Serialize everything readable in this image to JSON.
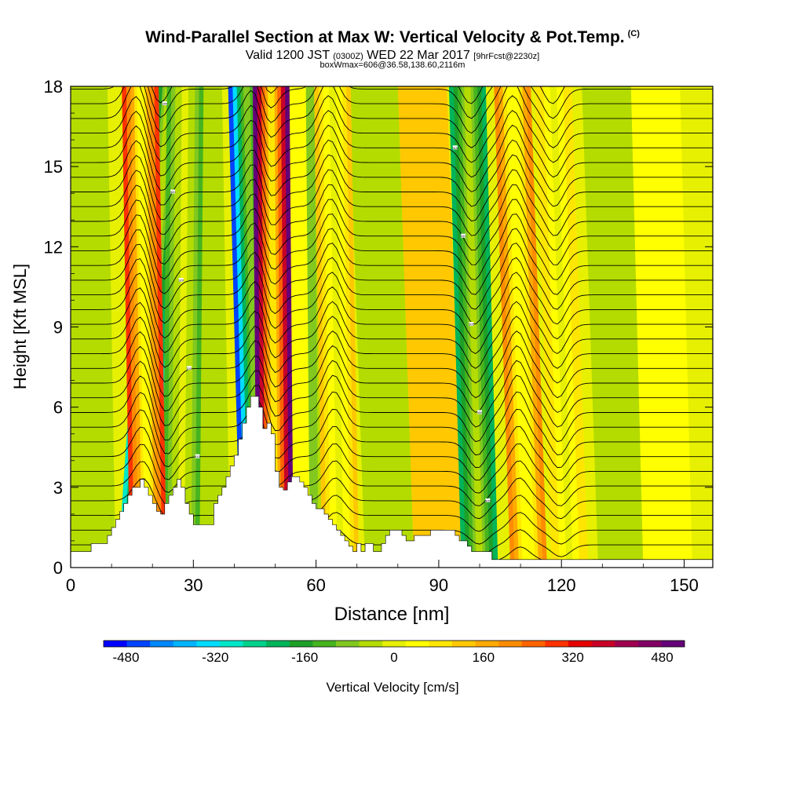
{
  "header": {
    "title": "Wind-Parallel Section at Max W: Vertical Velocity & Pot.Temp.",
    "copyright_mark": "(C)",
    "valid_prefix": "Valid 1200 JST",
    "valid_utc": "(0300Z)",
    "valid_suffix": "WED 22 Mar 2017",
    "forecast_tag": "[9hrFcst@2230z]",
    "box_info": "boxWmax=606@36.58,138.60,2116m"
  },
  "chart_data": {
    "type": "heatmap",
    "xlabel": "Distance [nm]",
    "ylabel": "Height [Kft MSL]",
    "xlim": [
      0,
      157
    ],
    "ylim": [
      0,
      18
    ],
    "x_ticks": [
      0,
      30,
      60,
      90,
      120,
      150
    ],
    "y_ticks": [
      0,
      3,
      6,
      9,
      12,
      15,
      18
    ],
    "colorbar": {
      "label": "Vertical Velocity [cm/s]",
      "ticks": [
        -480,
        -320,
        -160,
        0,
        160,
        320,
        480
      ],
      "range": [
        -520,
        520
      ],
      "colors": [
        "#0000ff",
        "#0044ff",
        "#0088ff",
        "#00b4ff",
        "#00dcff",
        "#00e6c8",
        "#00d28c",
        "#00b45a",
        "#1ea028",
        "#46b41e",
        "#82c81e",
        "#b4dc00",
        "#e6f000",
        "#ffff00",
        "#ffe600",
        "#ffc800",
        "#ffaa00",
        "#ff8c00",
        "#ff6400",
        "#ff3200",
        "#e60000",
        "#c80028",
        "#a00050",
        "#820064",
        "#640078"
      ]
    },
    "updraft_bands": [
      {
        "x_base": 19,
        "x_top": 17,
        "peak_w": 300
      },
      {
        "x_base": 50,
        "x_top": 49,
        "peak_w": 520
      },
      {
        "x_base": 66,
        "x_top": 64,
        "peak_w": 120
      },
      {
        "x_base": 112,
        "x_top": 108,
        "peak_w": 200
      },
      {
        "x_base": 122,
        "x_top": 118,
        "peak_w": 100
      }
    ],
    "downdraft_bands": [
      {
        "x_base": 16,
        "x_top": 24,
        "peak_w": -300
      },
      {
        "x_base": 46,
        "x_top": 43,
        "peak_w": -450
      },
      {
        "x_base": 100,
        "x_top": 97,
        "peak_w": -220
      },
      {
        "x_base": 27,
        "x_top": 28,
        "peak_w": -120
      },
      {
        "x_base": 63,
        "x_top": 62,
        "peak_w": -100
      }
    ],
    "terrain_kft": [
      [
        0,
        0.6
      ],
      [
        4,
        0.6
      ],
      [
        5,
        0.9
      ],
      [
        8,
        0.9
      ],
      [
        9,
        1.2
      ],
      [
        10,
        1.5
      ],
      [
        11,
        1.8
      ],
      [
        12,
        2.1
      ],
      [
        13,
        2.4
      ],
      [
        14,
        2.7
      ],
      [
        15,
        3.0
      ],
      [
        17,
        3.3
      ],
      [
        18,
        3.0
      ],
      [
        19,
        2.7
      ],
      [
        20,
        2.4
      ],
      [
        21,
        2.1
      ],
      [
        22,
        2.0
      ],
      [
        23,
        2.4
      ],
      [
        24,
        2.7
      ],
      [
        25,
        3.0
      ],
      [
        26,
        3.3
      ],
      [
        27,
        3.0
      ],
      [
        28,
        2.4
      ],
      [
        29,
        2.0
      ],
      [
        30,
        1.6
      ],
      [
        34,
        1.6
      ],
      [
        35,
        2.4
      ],
      [
        36,
        2.7
      ],
      [
        37,
        3.0
      ],
      [
        38,
        3.4
      ],
      [
        39,
        3.8
      ],
      [
        40,
        4.2
      ],
      [
        41,
        4.8
      ],
      [
        42,
        5.4
      ],
      [
        43,
        6.0
      ],
      [
        44,
        6.4
      ],
      [
        45,
        6.4
      ],
      [
        46,
        6.0
      ],
      [
        47,
        5.2
      ],
      [
        48,
        5.4
      ],
      [
        49,
        5.0
      ],
      [
        50,
        3.6
      ],
      [
        51,
        3.0
      ],
      [
        52,
        2.9
      ],
      [
        53,
        3.2
      ],
      [
        54,
        3.4
      ],
      [
        55,
        3.4
      ],
      [
        56,
        3.2
      ],
      [
        57,
        3.0
      ],
      [
        58,
        2.7
      ],
      [
        59,
        2.4
      ],
      [
        60,
        2.2
      ],
      [
        62,
        2.0
      ],
      [
        63,
        1.8
      ],
      [
        64,
        1.6
      ],
      [
        65,
        1.4
      ],
      [
        66,
        1.2
      ],
      [
        67,
        1.0
      ],
      [
        68,
        0.8
      ],
      [
        69,
        0.6
      ],
      [
        70,
        0.9
      ],
      [
        71,
        0.6
      ],
      [
        72,
        0.9
      ],
      [
        74,
        0.6
      ],
      [
        76,
        0.9
      ],
      [
        77,
        1.2
      ],
      [
        78,
        1.4
      ],
      [
        81,
        1.2
      ],
      [
        82,
        1.0
      ],
      [
        84,
        1.2
      ],
      [
        87,
        1.2
      ],
      [
        88,
        1.4
      ],
      [
        93,
        1.4
      ],
      [
        94,
        1.2
      ],
      [
        95,
        1.0
      ],
      [
        97,
        0.8
      ],
      [
        98,
        0.6
      ],
      [
        102,
        0.6
      ],
      [
        103,
        0.3
      ],
      [
        157,
        0.3
      ]
    ],
    "contour_labels": [
      "300",
      "305",
      "310",
      "315",
      "320"
    ]
  }
}
